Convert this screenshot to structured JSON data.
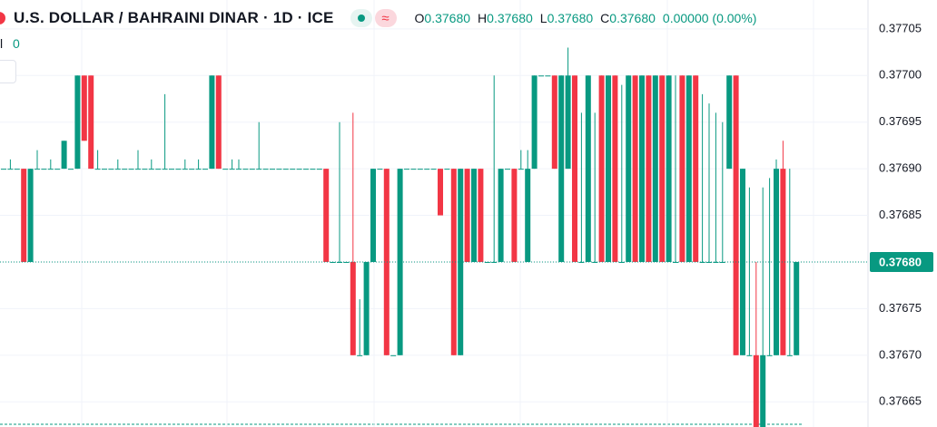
{
  "chart_data": {
    "type": "candlestick",
    "title": "U.S. DOLLAR / BAHRAINI DINAR · 1D · ICE",
    "legend_icon": "≈",
    "ohlc_labels": {
      "open_label": "O",
      "open": "0.37680",
      "high_label": "H",
      "high": "0.37680",
      "low_label": "L",
      "low": "0.37680",
      "close_label": "C",
      "close": "0.37680",
      "change": "0.00000 (0.00%)"
    },
    "volume_label": "l",
    "volume_value": "0",
    "up_color": "#089981",
    "down_color": "#f23645",
    "ylim": [
      0.376623,
      0.377081
    ],
    "yticks": [
      0.37705,
      {
        "value": 0.377,
        "label": "0.37700"
      },
      0.37695,
      {
        "value": 0.3769,
        "label": "0.37690"
      },
      0.37685,
      {
        "value": 0.3768,
        "label": "0.37680"
      },
      0.37675,
      {
        "value": 0.3767,
        "label": "0.37670"
      },
      0.37665
    ],
    "last_price": {
      "value": 0.3768,
      "label": "0.37680"
    },
    "grid": true,
    "ohlc": [
      [
        0.3769,
        0.3769,
        0.3769,
        0.3769
      ],
      [
        0.3769,
        0.37691,
        0.3769,
        0.3769
      ],
      [
        0.3769,
        0.3769,
        0.3769,
        0.3769
      ],
      [
        0.3769,
        0.3769,
        0.3768,
        0.3768
      ],
      [
        0.3768,
        0.3769,
        0.3768,
        0.3769
      ],
      [
        0.3769,
        0.37692,
        0.3769,
        0.3769
      ],
      [
        0.3769,
        0.3769,
        0.3769,
        0.3769
      ],
      [
        0.3769,
        0.37691,
        0.3769,
        0.3769
      ],
      [
        0.3769,
        0.3769,
        0.3769,
        0.3769
      ],
      [
        0.3769,
        0.37693,
        0.3769,
        0.37693
      ],
      [
        0.3769,
        0.3769,
        0.3769,
        0.3769
      ],
      [
        0.3769,
        0.377,
        0.3769,
        0.377
      ],
      [
        0.377,
        0.377,
        0.37693,
        0.37693
      ],
      [
        0.377,
        0.377,
        0.3769,
        0.3769
      ],
      [
        0.3769,
        0.37692,
        0.3769,
        0.3769
      ],
      [
        0.3769,
        0.3769,
        0.3769,
        0.3769
      ],
      [
        0.3769,
        0.3769,
        0.3769,
        0.3769
      ],
      [
        0.3769,
        0.37691,
        0.3769,
        0.3769
      ],
      [
        0.3769,
        0.3769,
        0.3769,
        0.3769
      ],
      [
        0.3769,
        0.3769,
        0.3769,
        0.3769
      ],
      [
        0.3769,
        0.37692,
        0.3769,
        0.3769
      ],
      [
        0.3769,
        0.3769,
        0.3769,
        0.3769
      ],
      [
        0.3769,
        0.37691,
        0.3769,
        0.3769
      ],
      [
        0.3769,
        0.3769,
        0.3769,
        0.3769
      ],
      [
        0.3769,
        0.37698,
        0.3769,
        0.3769
      ],
      [
        0.3769,
        0.3769,
        0.3769,
        0.3769
      ],
      [
        0.3769,
        0.3769,
        0.3769,
        0.3769
      ],
      [
        0.3769,
        0.37691,
        0.3769,
        0.3769
      ],
      [
        0.3769,
        0.3769,
        0.3769,
        0.3769
      ],
      [
        0.3769,
        0.37691,
        0.3769,
        0.3769
      ],
      [
        0.3769,
        0.3769,
        0.3769,
        0.3769
      ],
      [
        0.3769,
        0.377,
        0.3769,
        0.377
      ],
      [
        0.377,
        0.377,
        0.3769,
        0.3769
      ],
      [
        0.3769,
        0.3769,
        0.3769,
        0.3769
      ],
      [
        0.3769,
        0.37691,
        0.3769,
        0.3769
      ],
      [
        0.3769,
        0.37691,
        0.3769,
        0.3769
      ],
      [
        0.3769,
        0.3769,
        0.3769,
        0.3769
      ],
      [
        0.3769,
        0.3769,
        0.3769,
        0.3769
      ],
      [
        0.3769,
        0.37695,
        0.3769,
        0.3769
      ],
      [
        0.3769,
        0.3769,
        0.3769,
        0.3769
      ],
      [
        0.3769,
        0.3769,
        0.3769,
        0.3769
      ],
      [
        0.3769,
        0.3769,
        0.3769,
        0.3769
      ],
      [
        0.3769,
        0.3769,
        0.3769,
        0.3769
      ],
      [
        0.3769,
        0.3769,
        0.3769,
        0.3769
      ],
      [
        0.3769,
        0.3769,
        0.3769,
        0.3769
      ],
      [
        0.3769,
        0.3769,
        0.3769,
        0.3769
      ],
      [
        0.3769,
        0.3769,
        0.3769,
        0.3769
      ],
      [
        0.3769,
        0.3769,
        0.3769,
        0.3769
      ],
      [
        0.3769,
        0.3769,
        0.3768,
        0.3768
      ],
      [
        0.3768,
        0.3768,
        0.3768,
        0.3768
      ],
      [
        0.3768,
        0.37695,
        0.3768,
        0.3768
      ],
      [
        0.3768,
        0.3768,
        0.3768,
        0.3768
      ],
      [
        0.3768,
        0.37696,
        0.3767,
        0.3767
      ],
      [
        0.3767,
        0.37676,
        0.3767,
        0.3767
      ],
      [
        0.3767,
        0.3768,
        0.3767,
        0.3768
      ],
      [
        0.3768,
        0.3769,
        0.3768,
        0.3769
      ],
      [
        0.3769,
        0.3769,
        0.3769,
        0.3769
      ],
      [
        0.3769,
        0.3769,
        0.3767,
        0.3767
      ],
      [
        0.3767,
        0.3767,
        0.3767,
        0.3767
      ],
      [
        0.3767,
        0.3769,
        0.3767,
        0.3769
      ],
      [
        0.3769,
        0.3769,
        0.3769,
        0.3769
      ],
      [
        0.3769,
        0.3769,
        0.3769,
        0.3769
      ],
      [
        0.3769,
        0.3769,
        0.3769,
        0.3769
      ],
      [
        0.3769,
        0.3769,
        0.3769,
        0.3769
      ],
      [
        0.3769,
        0.3769,
        0.3769,
        0.3769
      ],
      [
        0.3769,
        0.3769,
        0.37685,
        0.37685
      ],
      [
        0.3769,
        0.3769,
        0.3769,
        0.3769
      ],
      [
        0.3769,
        0.3769,
        0.3767,
        0.3767
      ],
      [
        0.3767,
        0.3769,
        0.3767,
        0.3769
      ],
      [
        0.3769,
        0.3769,
        0.3768,
        0.3768
      ],
      [
        0.3768,
        0.3769,
        0.3768,
        0.3769
      ],
      [
        0.3769,
        0.3769,
        0.3768,
        0.3768
      ],
      [
        0.3768,
        0.3768,
        0.3768,
        0.3768
      ],
      [
        0.3768,
        0.377,
        0.3768,
        0.3768
      ],
      [
        0.3768,
        0.3769,
        0.3768,
        0.3769
      ],
      [
        0.3769,
        0.3769,
        0.3769,
        0.3769
      ],
      [
        0.3769,
        0.3769,
        0.3768,
        0.3768
      ],
      [
        0.3769,
        0.37692,
        0.3769,
        0.3769
      ],
      [
        0.3768,
        0.37692,
        0.3768,
        0.3769
      ],
      [
        0.3769,
        0.377,
        0.3769,
        0.377
      ],
      [
        0.377,
        0.377,
        0.377,
        0.377
      ],
      [
        0.377,
        0.377,
        0.377,
        0.377
      ],
      [
        0.377,
        0.377,
        0.3769,
        0.3769
      ],
      [
        0.3768,
        0.377,
        0.3768,
        0.377
      ],
      [
        0.3769,
        0.37703,
        0.3769,
        0.377
      ],
      [
        0.377,
        0.377,
        0.3768,
        0.3768
      ],
      [
        0.3768,
        0.37696,
        0.3768,
        0.3768
      ],
      [
        0.3768,
        0.377,
        0.3768,
        0.377
      ],
      [
        0.3768,
        0.37696,
        0.3768,
        0.3768
      ],
      [
        0.377,
        0.377,
        0.3768,
        0.3768
      ],
      [
        0.3768,
        0.377,
        0.3768,
        0.377
      ],
      [
        0.377,
        0.377,
        0.3768,
        0.3768
      ],
      [
        0.3768,
        0.37699,
        0.3768,
        0.3768
      ],
      [
        0.3768,
        0.377,
        0.3768,
        0.377
      ],
      [
        0.377,
        0.377,
        0.3768,
        0.3768
      ],
      [
        0.3768,
        0.377,
        0.3768,
        0.377
      ],
      [
        0.377,
        0.377,
        0.3768,
        0.3768
      ],
      [
        0.3768,
        0.377,
        0.3768,
        0.377
      ],
      [
        0.377,
        0.377,
        0.3768,
        0.3768
      ],
      [
        0.3768,
        0.377,
        0.3768,
        0.377
      ],
      [
        0.3768,
        0.377,
        0.3768,
        0.3768
      ],
      [
        0.377,
        0.377,
        0.3768,
        0.3768
      ],
      [
        0.3768,
        0.377,
        0.3768,
        0.377
      ],
      [
        0.377,
        0.377,
        0.3768,
        0.3768
      ],
      [
        0.3768,
        0.37698,
        0.3768,
        0.3768
      ],
      [
        0.3768,
        0.37697,
        0.3768,
        0.3768
      ],
      [
        0.3768,
        0.37696,
        0.3768,
        0.3768
      ],
      [
        0.3768,
        0.37695,
        0.3768,
        0.3768
      ],
      [
        0.3769,
        0.377,
        0.3769,
        0.377
      ],
      [
        0.377,
        0.377,
        0.3767,
        0.3767
      ],
      [
        0.3767,
        0.3769,
        0.3767,
        0.3769
      ],
      [
        0.3767,
        0.37688,
        0.3767,
        0.3767
      ],
      [
        0.3767,
        0.3768,
        0.37662,
        0.37662
      ],
      [
        0.37662,
        0.37688,
        0.37662,
        0.3767
      ],
      [
        0.3767,
        0.37689,
        0.3767,
        0.3767
      ],
      [
        0.3767,
        0.37691,
        0.3767,
        0.3769
      ],
      [
        0.3769,
        0.37693,
        0.3767,
        0.3767
      ],
      [
        0.3767,
        0.3769,
        0.3767,
        0.3767
      ],
      [
        0.3767,
        0.3768,
        0.3767,
        0.3768
      ]
    ]
  }
}
